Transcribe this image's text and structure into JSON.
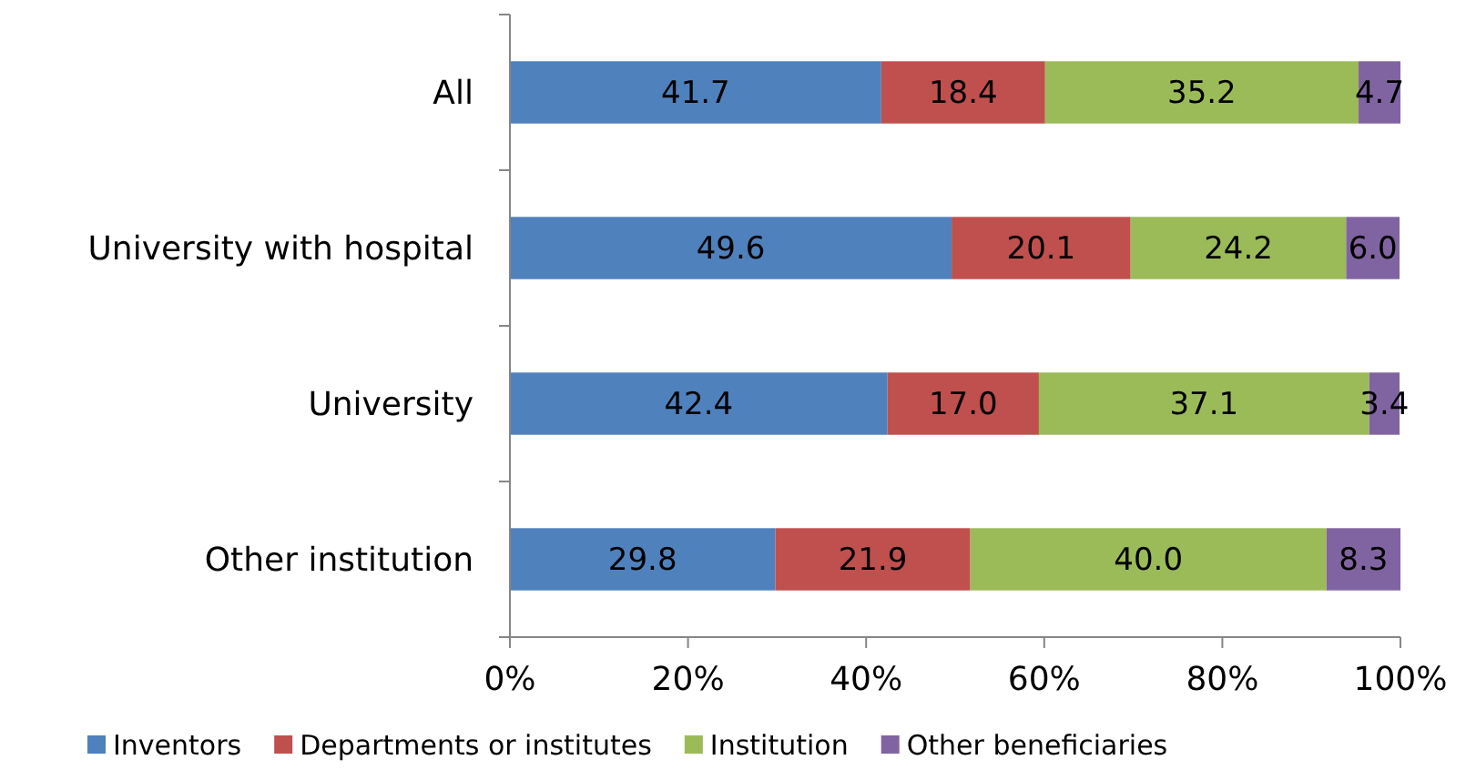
{
  "chart_data": {
    "type": "bar",
    "orientation": "horizontal",
    "stacked": true,
    "categories": [
      "All",
      "University with hospital",
      "University",
      "Other institution"
    ],
    "series": [
      {
        "name": "Inventors",
        "color": "#4f81bd",
        "values": [
          41.7,
          49.6,
          42.4,
          29.8
        ],
        "value_labels": [
          "41.7",
          "49.6",
          "42.4",
          "29.8"
        ]
      },
      {
        "name": "Departments or institutes",
        "color": "#c0504d",
        "values": [
          18.4,
          20.1,
          17.0,
          21.9
        ],
        "value_labels": [
          "18.4",
          "20.1",
          "17.0",
          "21.9"
        ]
      },
      {
        "name": "Institution",
        "color": "#9bbb59",
        "values": [
          35.2,
          24.2,
          37.1,
          40.0
        ],
        "value_labels": [
          "35.2",
          "24.2",
          "37.1",
          "40.0"
        ]
      },
      {
        "name": "Other beneficiaries",
        "color": "#8064a2",
        "values": [
          4.7,
          6.0,
          3.4,
          8.3
        ],
        "value_labels": [
          "4.7",
          "6.0",
          "3.4",
          "8.3"
        ]
      }
    ],
    "xlim": [
      0,
      100
    ],
    "xticks": [
      {
        "value": 0,
        "label": "0%"
      },
      {
        "value": 20,
        "label": "20%"
      },
      {
        "value": 40,
        "label": "40%"
      },
      {
        "value": 60,
        "label": "60%"
      },
      {
        "value": 80,
        "label": "80%"
      },
      {
        "value": 100,
        "label": "100%"
      }
    ],
    "legend": "bottom",
    "grid": false
  }
}
